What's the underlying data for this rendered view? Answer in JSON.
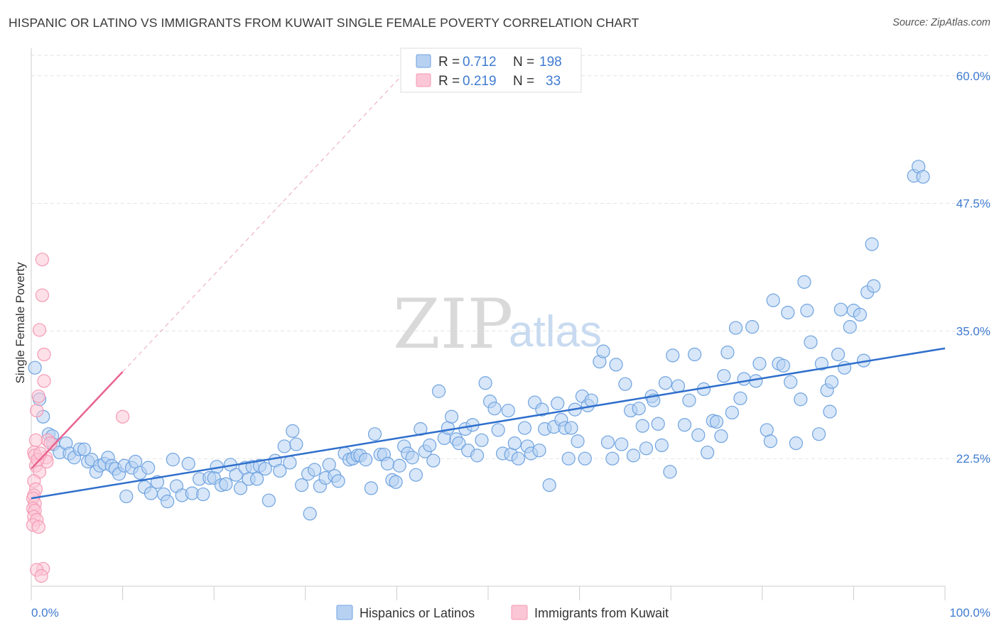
{
  "title": "HISPANIC OR LATINO VS IMMIGRANTS FROM KUWAIT SINGLE FEMALE POVERTY CORRELATION CHART",
  "source": "Source: ZipAtlas.com",
  "watermark": {
    "zip": "ZIP",
    "atlas": "atlas"
  },
  "chart_data": {
    "type": "scatter",
    "title": "HISPANIC OR LATINO VS IMMIGRANTS FROM KUWAIT SINGLE FEMALE POVERTY CORRELATION CHART",
    "xlabel": "",
    "ylabel": "Single Female Poverty",
    "xlim": [
      0,
      100
    ],
    "ylim": [
      10,
      62
    ],
    "x_tick_labels": [
      "0.0%",
      "100.0%"
    ],
    "y_ticks": [
      22.5,
      35.0,
      47.5,
      60.0
    ],
    "y_tick_labels": [
      "22.5%",
      "35.0%",
      "47.5%",
      "60.0%"
    ],
    "grid": true,
    "legend_position": "top-center",
    "colors": {
      "blue": "#6fa3e0",
      "blue_line": "#2f6fcc",
      "pink": "#f59ab5",
      "pink_line": "#e8628f"
    },
    "stats": [
      {
        "r_label": "R = ",
        "r": "0.712",
        "n_label": "N = ",
        "n": "198"
      },
      {
        "r_label": "R = ",
        "r": "0.219",
        "n_label": "N = ",
        "n": "33"
      }
    ],
    "series": [
      {
        "name": "Hispanics or Latinos",
        "color": "#6fa3e0",
        "trend": {
          "x": [
            0,
            100
          ],
          "y": [
            18.6,
            33.3
          ]
        },
        "points": [
          [
            0.4,
            31.4
          ],
          [
            1.3,
            26.6
          ],
          [
            0.9,
            28.3
          ],
          [
            1.9,
            24.9
          ],
          [
            2.3,
            24.7
          ],
          [
            2.4,
            23.9
          ],
          [
            3.1,
            23.1
          ],
          [
            3.8,
            24.0
          ],
          [
            4.2,
            23.0
          ],
          [
            4.7,
            22.6
          ],
          [
            5.3,
            23.4
          ],
          [
            5.8,
            23.4
          ],
          [
            6.2,
            22.2
          ],
          [
            6.6,
            22.4
          ],
          [
            7.1,
            21.2
          ],
          [
            7.5,
            21.8
          ],
          [
            8.0,
            22.0
          ],
          [
            8.4,
            22.6
          ],
          [
            8.8,
            21.8
          ],
          [
            9.2,
            21.5
          ],
          [
            9.6,
            21.0
          ],
          [
            10.2,
            21.8
          ],
          [
            10.4,
            18.8
          ],
          [
            11.0,
            21.6
          ],
          [
            11.4,
            22.2
          ],
          [
            11.9,
            21.1
          ],
          [
            12.4,
            19.7
          ],
          [
            12.8,
            21.6
          ],
          [
            13.1,
            19.1
          ],
          [
            13.8,
            20.2
          ],
          [
            14.5,
            19.0
          ],
          [
            14.9,
            18.3
          ],
          [
            15.5,
            22.4
          ],
          [
            15.9,
            19.8
          ],
          [
            16.5,
            18.9
          ],
          [
            17.2,
            22.0
          ],
          [
            17.6,
            19.1
          ],
          [
            18.4,
            20.5
          ],
          [
            18.8,
            19.0
          ],
          [
            19.5,
            20.6
          ],
          [
            20.0,
            20.6
          ],
          [
            20.3,
            21.7
          ],
          [
            20.8,
            19.9
          ],
          [
            21.3,
            20.0
          ],
          [
            21.8,
            21.9
          ],
          [
            22.4,
            20.9
          ],
          [
            22.9,
            19.6
          ],
          [
            23.4,
            21.6
          ],
          [
            23.8,
            20.5
          ],
          [
            24.2,
            21.7
          ],
          [
            24.7,
            20.5
          ],
          [
            25.0,
            21.8
          ],
          [
            25.6,
            21.5
          ],
          [
            26.0,
            18.4
          ],
          [
            26.7,
            22.3
          ],
          [
            27.2,
            21.3
          ],
          [
            27.7,
            23.7
          ],
          [
            28.3,
            22.1
          ],
          [
            28.6,
            25.2
          ],
          [
            29.0,
            23.9
          ],
          [
            29.6,
            19.9
          ],
          [
            30.3,
            21.0
          ],
          [
            30.5,
            17.1
          ],
          [
            31.0,
            21.4
          ],
          [
            31.6,
            19.8
          ],
          [
            32.2,
            20.6
          ],
          [
            32.6,
            21.9
          ],
          [
            33.2,
            20.8
          ],
          [
            33.6,
            20.3
          ],
          [
            34.3,
            23.0
          ],
          [
            34.8,
            22.4
          ],
          [
            35.2,
            22.5
          ],
          [
            35.7,
            22.8
          ],
          [
            36.0,
            22.8
          ],
          [
            36.6,
            22.4
          ],
          [
            37.2,
            19.6
          ],
          [
            37.6,
            24.9
          ],
          [
            38.2,
            22.9
          ],
          [
            38.6,
            22.9
          ],
          [
            39.0,
            22.0
          ],
          [
            39.5,
            20.4
          ],
          [
            39.9,
            20.2
          ],
          [
            40.3,
            21.8
          ],
          [
            40.8,
            23.7
          ],
          [
            41.2,
            23.0
          ],
          [
            41.7,
            22.6
          ],
          [
            42.1,
            20.9
          ],
          [
            42.6,
            25.4
          ],
          [
            43.1,
            23.2
          ],
          [
            43.6,
            23.8
          ],
          [
            44.0,
            22.3
          ],
          [
            44.6,
            29.1
          ],
          [
            45.2,
            24.5
          ],
          [
            45.6,
            25.5
          ],
          [
            46.0,
            26.6
          ],
          [
            46.5,
            24.4
          ],
          [
            46.8,
            24.0
          ],
          [
            47.5,
            25.4
          ],
          [
            47.8,
            23.3
          ],
          [
            48.3,
            25.8
          ],
          [
            48.8,
            22.8
          ],
          [
            49.3,
            24.3
          ],
          [
            49.7,
            29.9
          ],
          [
            50.2,
            28.1
          ],
          [
            50.7,
            27.4
          ],
          [
            51.1,
            25.3
          ],
          [
            51.6,
            23.0
          ],
          [
            52.2,
            27.2
          ],
          [
            52.5,
            22.9
          ],
          [
            52.9,
            24.0
          ],
          [
            53.3,
            22.5
          ],
          [
            54.0,
            25.5
          ],
          [
            54.3,
            23.7
          ],
          [
            54.7,
            23.0
          ],
          [
            55.1,
            28.0
          ],
          [
            55.6,
            23.3
          ],
          [
            55.9,
            27.3
          ],
          [
            56.2,
            25.4
          ],
          [
            56.7,
            19.9
          ],
          [
            57.2,
            25.6
          ],
          [
            57.6,
            27.9
          ],
          [
            58.0,
            26.3
          ],
          [
            58.4,
            25.5
          ],
          [
            58.8,
            22.5
          ],
          [
            59.1,
            25.5
          ],
          [
            59.5,
            27.3
          ],
          [
            59.8,
            24.2
          ],
          [
            60.3,
            28.6
          ],
          [
            60.6,
            22.5
          ],
          [
            60.9,
            27.7
          ],
          [
            61.3,
            28.2
          ],
          [
            62.2,
            32.0
          ],
          [
            62.6,
            33.0
          ],
          [
            63.1,
            24.1
          ],
          [
            63.6,
            22.5
          ],
          [
            64.0,
            31.7
          ],
          [
            64.6,
            23.9
          ],
          [
            65.0,
            29.8
          ],
          [
            65.6,
            27.2
          ],
          [
            65.9,
            22.8
          ],
          [
            66.5,
            27.4
          ],
          [
            66.9,
            25.7
          ],
          [
            67.3,
            23.5
          ],
          [
            67.9,
            28.6
          ],
          [
            68.1,
            28.2
          ],
          [
            68.6,
            25.9
          ],
          [
            69.0,
            23.8
          ],
          [
            69.4,
            29.9
          ],
          [
            69.9,
            21.2
          ],
          [
            70.2,
            32.6
          ],
          [
            70.8,
            29.6
          ],
          [
            71.5,
            25.8
          ],
          [
            72.0,
            28.2
          ],
          [
            72.6,
            32.7
          ],
          [
            73.0,
            24.8
          ],
          [
            73.6,
            29.3
          ],
          [
            74.0,
            23.1
          ],
          [
            74.6,
            26.2
          ],
          [
            75.0,
            26.1
          ],
          [
            75.5,
            24.7
          ],
          [
            75.8,
            30.6
          ],
          [
            76.2,
            32.9
          ],
          [
            76.7,
            27.0
          ],
          [
            77.1,
            35.3
          ],
          [
            77.6,
            28.4
          ],
          [
            78.0,
            30.3
          ],
          [
            78.9,
            35.4
          ],
          [
            79.3,
            30.1
          ],
          [
            79.7,
            31.8
          ],
          [
            80.5,
            25.3
          ],
          [
            80.9,
            24.2
          ],
          [
            81.2,
            38.0
          ],
          [
            81.8,
            31.8
          ],
          [
            82.3,
            31.6
          ],
          [
            82.8,
            36.8
          ],
          [
            83.1,
            30.0
          ],
          [
            83.7,
            24.0
          ],
          [
            84.2,
            28.3
          ],
          [
            84.6,
            39.8
          ],
          [
            84.9,
            37.0
          ],
          [
            85.3,
            33.9
          ],
          [
            86.2,
            24.9
          ],
          [
            86.5,
            31.8
          ],
          [
            87.1,
            29.2
          ],
          [
            87.4,
            27.1
          ],
          [
            87.6,
            30.0
          ],
          [
            88.3,
            32.7
          ],
          [
            88.6,
            37.1
          ],
          [
            89.0,
            31.4
          ],
          [
            89.6,
            35.4
          ],
          [
            90.0,
            37.0
          ],
          [
            90.7,
            36.6
          ],
          [
            91.1,
            32.1
          ],
          [
            91.5,
            38.8
          ],
          [
            92.2,
            39.4
          ],
          [
            92.0,
            43.5
          ],
          [
            96.6,
            50.2
          ],
          [
            97.1,
            51.1
          ],
          [
            97.6,
            50.1
          ]
        ]
      },
      {
        "name": "Immigrants from Kuwait",
        "color": "#f59ab5",
        "trend": {
          "x": [
            0,
            10
          ],
          "y": [
            21.5,
            31.0
          ]
        },
        "points": [
          [
            1.2,
            42.0
          ],
          [
            1.2,
            38.5
          ],
          [
            0.9,
            35.1
          ],
          [
            1.4,
            32.7
          ],
          [
            1.4,
            30.1
          ],
          [
            0.8,
            28.6
          ],
          [
            0.6,
            27.2
          ],
          [
            1.8,
            24.3
          ],
          [
            2.1,
            24.0
          ],
          [
            0.5,
            24.3
          ],
          [
            0.3,
            23.1
          ],
          [
            0.4,
            22.8
          ],
          [
            1.6,
            22.6
          ],
          [
            1.7,
            22.2
          ],
          [
            0.5,
            21.8
          ],
          [
            0.9,
            21.2
          ],
          [
            0.3,
            20.3
          ],
          [
            0.5,
            19.5
          ],
          [
            0.3,
            18.9
          ],
          [
            0.2,
            18.6
          ],
          [
            0.4,
            18.1
          ],
          [
            0.2,
            17.6
          ],
          [
            0.4,
            17.4
          ],
          [
            0.3,
            16.8
          ],
          [
            0.6,
            16.5
          ],
          [
            0.2,
            16.0
          ],
          [
            0.8,
            15.8
          ],
          [
            1.3,
            11.7
          ],
          [
            0.6,
            11.6
          ],
          [
            1.1,
            11.0
          ],
          [
            10.0,
            26.6
          ],
          [
            0.7,
            22.4
          ],
          [
            1.0,
            23.0
          ]
        ]
      }
    ]
  },
  "bottom_legend": [
    "Hispanics or Latinos",
    "Immigrants from Kuwait"
  ]
}
